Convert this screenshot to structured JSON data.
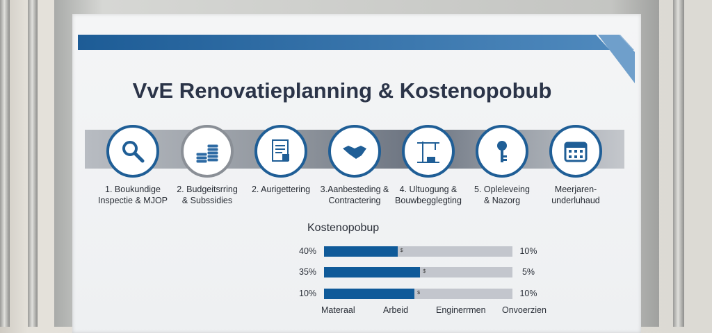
{
  "title": "VvE Renovatieplanning & Kostenopobub",
  "colors": {
    "primary": "#1f5e96",
    "bar_fill": "#0f5a99",
    "bar_track": "#c3c6cd",
    "title": "#2b3448"
  },
  "steps": [
    {
      "icon": "magnifier-icon",
      "line1": "1. Boukundige",
      "line2": "Inspectie & MJOP"
    },
    {
      "icon": "coins-icon",
      "line1": "2. Budgeitsrring",
      "line2": "& Subssidies"
    },
    {
      "icon": "document-icon",
      "line1": "2. Aurigettering",
      "line2": ""
    },
    {
      "icon": "handshake-icon",
      "line1": "3.Aanbesteding &",
      "line2": "Contractering"
    },
    {
      "icon": "crane-icon",
      "line1": "4. Ultuogung &",
      "line2": "Bouwbegglegting"
    },
    {
      "icon": "key-icon",
      "line1": "5. Opleleveing",
      "line2": "& Nazorg"
    },
    {
      "icon": "calendar-icon",
      "line1": "Meerjaren-",
      "line2": "underluhaud"
    }
  ],
  "cost": {
    "title": "Kostenopobup",
    "rows": [
      {
        "left": "40%",
        "right": "10%",
        "fill": 0.39,
        "mark": "$"
      },
      {
        "left": "35%",
        "right": "5%",
        "fill": 0.51,
        "mark": "$"
      },
      {
        "left": "10%",
        "right": "10%",
        "fill": 0.48,
        "mark": "$"
      }
    ],
    "categories": [
      "Materaal",
      "Arbeid",
      "Enginerrmen",
      "Onvoerzien"
    ]
  }
}
